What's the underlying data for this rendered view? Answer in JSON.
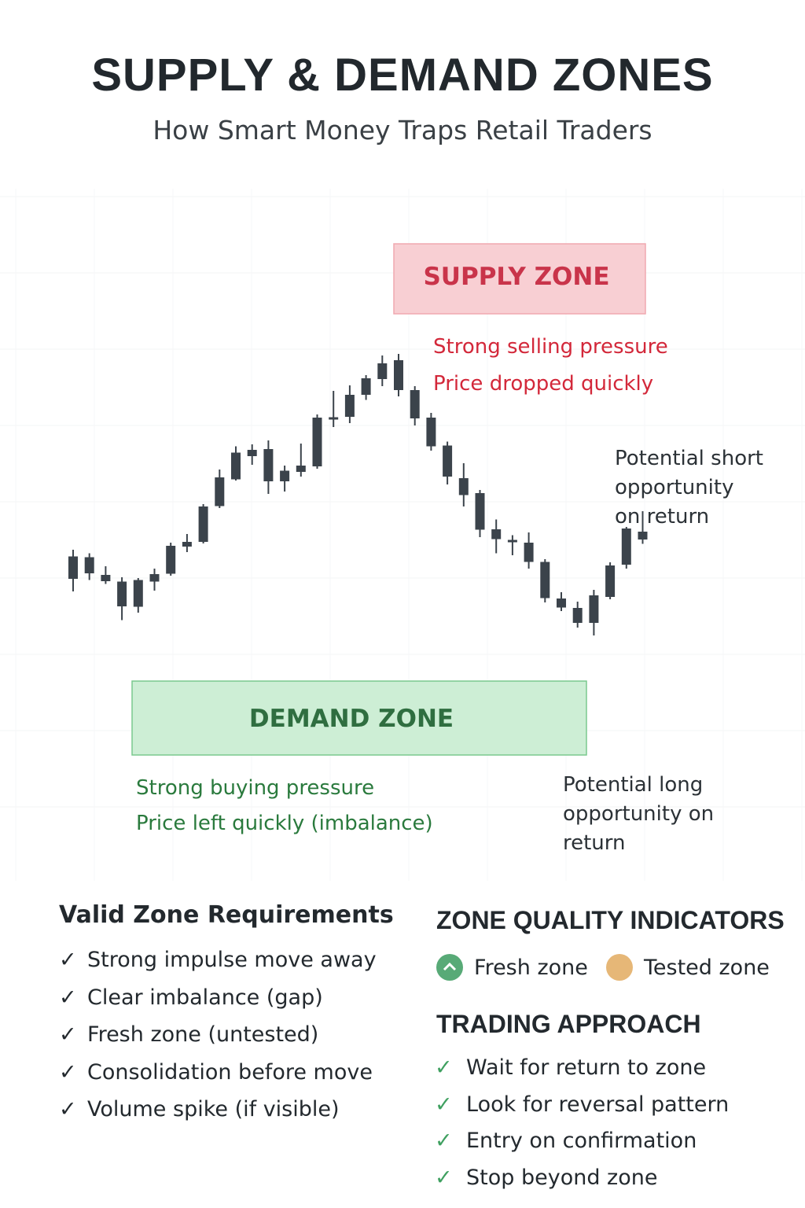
{
  "header": {
    "title": "SUPPLY & DEMAND ZONES",
    "subtitle": "How Smart Money Traps Retail Traders"
  },
  "chart_data": {
    "type": "candlestick",
    "title": "",
    "xlabel": "",
    "ylabel": "",
    "grid": true,
    "candles": [
      {
        "o": 38.5,
        "h": 40.2,
        "l": 29.6,
        "c": 32.8
      },
      {
        "o": 38.3,
        "h": 39.3,
        "l": 32.5,
        "c": 34.2
      },
      {
        "o": 33.8,
        "h": 36.0,
        "l": 31.5,
        "c": 32.2
      },
      {
        "o": 32.1,
        "h": 33.2,
        "l": 22.3,
        "c": 25.8
      },
      {
        "o": 25.7,
        "h": 33.0,
        "l": 24.2,
        "c": 32.5
      },
      {
        "o": 32.1,
        "h": 35.4,
        "l": 29.8,
        "c": 34.0
      },
      {
        "o": 34.1,
        "h": 42.0,
        "l": 33.6,
        "c": 41.2
      },
      {
        "o": 41.0,
        "h": 44.2,
        "l": 39.6,
        "c": 42.2
      },
      {
        "o": 42.2,
        "h": 51.8,
        "l": 41.8,
        "c": 51.2
      },
      {
        "o": 51.3,
        "h": 60.6,
        "l": 50.8,
        "c": 58.6
      },
      {
        "o": 58.1,
        "h": 66.5,
        "l": 57.8,
        "c": 64.9
      },
      {
        "o": 64.0,
        "h": 67.0,
        "l": 61.8,
        "c": 65.6
      },
      {
        "o": 65.8,
        "h": 68.0,
        "l": 54.4,
        "c": 57.6
      },
      {
        "o": 57.6,
        "h": 61.6,
        "l": 55.0,
        "c": 60.3
      },
      {
        "o": 60.0,
        "h": 67.2,
        "l": 58.8,
        "c": 61.6
      },
      {
        "o": 61.4,
        "h": 74.6,
        "l": 60.8,
        "c": 73.8
      },
      {
        "o": 73.4,
        "h": 80.6,
        "l": 71.4,
        "c": 73.9
      },
      {
        "o": 74.0,
        "h": 82.0,
        "l": 72.4,
        "c": 79.6
      },
      {
        "o": 79.6,
        "h": 84.6,
        "l": 78.3,
        "c": 83.8
      },
      {
        "o": 83.6,
        "h": 89.6,
        "l": 81.8,
        "c": 87.6
      },
      {
        "o": 88.4,
        "h": 90.0,
        "l": 79.2,
        "c": 80.8
      },
      {
        "o": 80.8,
        "h": 81.8,
        "l": 71.8,
        "c": 73.6
      },
      {
        "o": 73.8,
        "h": 75.0,
        "l": 65.4,
        "c": 66.5
      },
      {
        "o": 66.7,
        "h": 67.7,
        "l": 56.8,
        "c": 58.8
      },
      {
        "o": 58.4,
        "h": 62.2,
        "l": 51.2,
        "c": 54.1
      },
      {
        "o": 54.6,
        "h": 55.4,
        "l": 43.4,
        "c": 45.3
      },
      {
        "o": 45.4,
        "h": 47.9,
        "l": 39.3,
        "c": 42.9
      },
      {
        "o": 42.7,
        "h": 43.9,
        "l": 38.8,
        "c": 42.2
      },
      {
        "o": 42.0,
        "h": 44.6,
        "l": 35.4,
        "c": 37.1
      },
      {
        "o": 37.1,
        "h": 37.8,
        "l": 26.8,
        "c": 27.9
      },
      {
        "o": 27.8,
        "h": 29.4,
        "l": 24.6,
        "c": 25.5
      },
      {
        "o": 25.4,
        "h": 27.0,
        "l": 20.4,
        "c": 21.6
      },
      {
        "o": 21.6,
        "h": 30.0,
        "l": 18.4,
        "c": 28.6
      },
      {
        "o": 28.2,
        "h": 37.0,
        "l": 27.6,
        "c": 36.2
      },
      {
        "o": 36.4,
        "h": 46.0,
        "l": 35.4,
        "c": 45.6
      },
      {
        "o": 42.8,
        "h": 50.0,
        "l": 41.7,
        "c": 44.8
      }
    ],
    "supply_zone": {
      "label": "SUPPLY ZONE",
      "notes": [
        "Strong selling pressure",
        "Price dropped quickly"
      ]
    },
    "demand_zone": {
      "label": "DEMAND ZONE",
      "notes": [
        "Strong buying pressure",
        "Price left quickly (imbalance)"
      ]
    },
    "annotations": {
      "short": [
        "Potential short",
        "opportunity",
        "on return"
      ],
      "long": [
        "Potential long",
        "opportunity on",
        "return"
      ]
    },
    "colors": {
      "candle": "#3b434b",
      "supply_fill": "#f8cfd3",
      "supply_border": "#f0a9b0",
      "supply_text": "#c9344a",
      "demand_fill": "#cdeed5",
      "demand_border": "#7ac98e",
      "demand_text": "#2f6e40"
    }
  },
  "requirements": {
    "heading": "Valid Zone Requirements",
    "items": [
      "Strong impulse move away",
      "Clear imbalance (gap)",
      "Fresh zone (untested)",
      "Consolidation before move",
      "Volume spike (if visible)"
    ]
  },
  "quality": {
    "heading": "ZONE QUALITY INDICATORS",
    "fresh_label": "Fresh zone",
    "tested_label": "Tested zone",
    "fresh_color": "#58aa77",
    "tested_color": "#e6b777"
  },
  "approach": {
    "heading": "TRADING APPROACH",
    "items": [
      "Wait for return to zone",
      "Look for reversal pattern",
      "Entry on confirmation",
      "Stop beyond zone"
    ]
  }
}
